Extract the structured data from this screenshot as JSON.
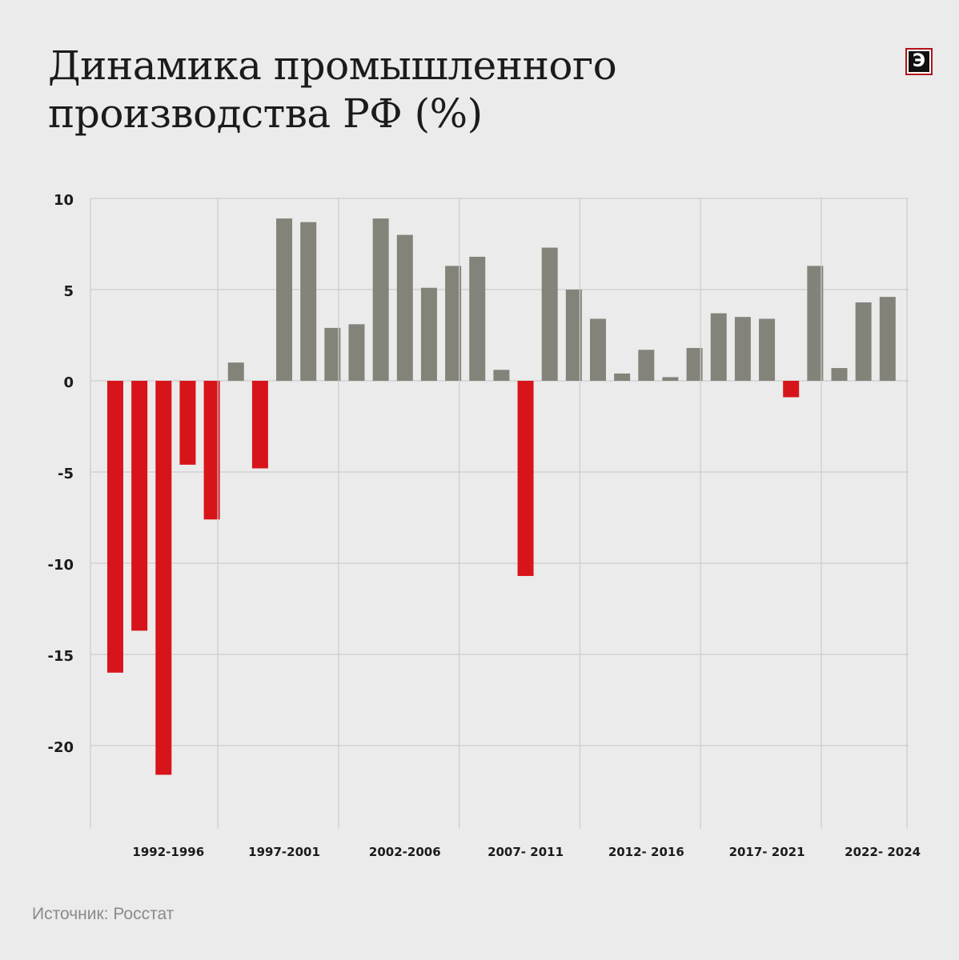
{
  "title_lines": [
    "Динамика промышленного",
    "производства РФ (%)"
  ],
  "logo_letter": "Э",
  "source": "Источник: Росстат",
  "colors": {
    "negative": "#d7141a",
    "positive": "#848379",
    "grid": "#cccccc",
    "text": "#1b1b1b"
  },
  "chart_data": {
    "type": "bar",
    "title": "Динамика промышленного производства РФ (%)",
    "xlabel": "",
    "ylabel": "",
    "ylim": [
      -24.5,
      10
    ],
    "yticks": [
      10,
      5,
      0,
      -5,
      -10,
      -15,
      -20
    ],
    "x": [
      1992,
      1993,
      1994,
      1995,
      1996,
      1997,
      1998,
      1999,
      2000,
      2001,
      2002,
      2003,
      2004,
      2005,
      2006,
      2007,
      2008,
      2009,
      2010,
      2011,
      2012,
      2013,
      2014,
      2015,
      2016,
      2017,
      2018,
      2019,
      2020,
      2021,
      2022,
      2023,
      2024
    ],
    "values": [
      -16.0,
      -13.7,
      -21.6,
      -4.6,
      -7.6,
      1.0,
      -4.8,
      8.9,
      8.7,
      2.9,
      3.1,
      8.9,
      8.0,
      5.1,
      6.3,
      6.8,
      0.6,
      -10.7,
      7.3,
      5.0,
      3.4,
      0.4,
      1.7,
      0.2,
      1.8,
      3.7,
      3.5,
      3.4,
      -0.9,
      6.3,
      0.7,
      4.3,
      4.6
    ],
    "groups": [
      {
        "label": "1992-1996",
        "first": 1992,
        "last": 1996
      },
      {
        "label": "1997-2001",
        "first": 1997,
        "last": 2001
      },
      {
        "label": "2002-2006",
        "first": 2002,
        "last": 2006
      },
      {
        "label": "2007- 2011",
        "first": 2007,
        "last": 2011
      },
      {
        "label": "2012- 2016",
        "first": 2012,
        "last": 2016
      },
      {
        "label": "2017- 2021",
        "first": 2017,
        "last": 2021
      },
      {
        "label": "2022- 2024",
        "first": 2022,
        "last": 2024
      }
    ]
  }
}
